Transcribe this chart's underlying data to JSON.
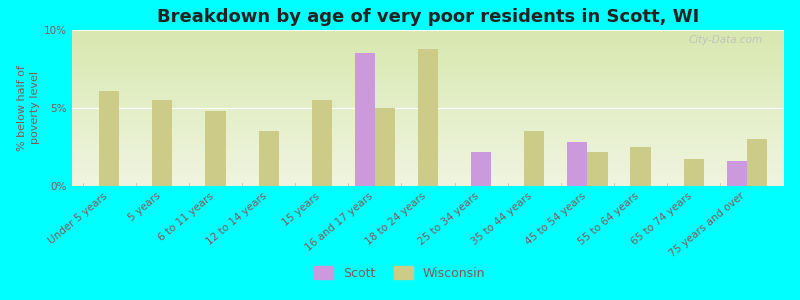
{
  "title": "Breakdown by age of very poor residents in Scott, WI",
  "ylabel": "% below half of\npoverty level",
  "background_color": "#00FFFF",
  "plot_bg_top": "#d8e8b0",
  "plot_bg_bottom": "#f0f5e0",
  "categories": [
    "Under 5 years",
    "5 years",
    "6 to 11 years",
    "12 to 14 years",
    "15 years",
    "16 and 17 years",
    "18 to 24 years",
    "25 to 34 years",
    "35 to 44 years",
    "45 to 54 years",
    "55 to 64 years",
    "65 to 74 years",
    "75 years and over"
  ],
  "scott_values": [
    null,
    null,
    null,
    null,
    null,
    8.5,
    null,
    2.2,
    null,
    2.8,
    null,
    null,
    1.6
  ],
  "wisconsin_values": [
    6.1,
    5.5,
    4.8,
    3.5,
    5.5,
    5.0,
    8.8,
    null,
    3.5,
    2.2,
    2.5,
    1.7,
    3.0
  ],
  "scott_color": "#cc99dd",
  "wisconsin_color": "#cccc88",
  "ylim": [
    0,
    10
  ],
  "yticks": [
    0,
    5,
    10
  ],
  "ytick_labels": [
    "0%",
    "5%",
    "10%"
  ],
  "bar_width": 0.38,
  "title_fontsize": 13,
  "axis_label_fontsize": 8,
  "tick_fontsize": 7.5,
  "legend_fontsize": 9,
  "watermark": "City-Data.com"
}
